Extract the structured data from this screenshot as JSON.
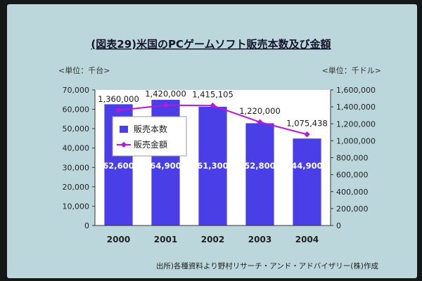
{
  "chart_data": {
    "type": "bar+line",
    "title": "(図表29)米国のPCゲームソフト販売本数及び金額",
    "left_unit": "<単位：千台>",
    "right_unit": "<単位：千ドル>",
    "categories": [
      "2000",
      "2001",
      "2002",
      "2003",
      "2004"
    ],
    "series": [
      {
        "name": "販売本数",
        "type": "bar",
        "axis": "left",
        "values": [
          62600,
          64900,
          61300,
          52800,
          44900
        ],
        "labels": [
          "62,600",
          "64,900",
          "61,300",
          "52,800",
          "44,900"
        ],
        "color": "#4a3fe6"
      },
      {
        "name": "販売金額",
        "type": "line",
        "axis": "right",
        "values": [
          1360000,
          1420000,
          1415105,
          1220000,
          1075438
        ],
        "labels": [
          "1,360,000",
          "1,420,000",
          "1,415,105",
          "1,220,000",
          "1,075,438"
        ],
        "color": "#b61ad6"
      }
    ],
    "left_axis": {
      "range": [
        0,
        70000
      ],
      "ticks": [
        "0",
        "10,000",
        "20,000",
        "30,000",
        "40,000",
        "50,000",
        "60,000",
        "70,000"
      ]
    },
    "right_axis": {
      "range": [
        0,
        1600000
      ],
      "ticks": [
        "0",
        "200,000",
        "400,000",
        "600,000",
        "800,000",
        "1,000,000",
        "1,200,000",
        "1,400,000",
        "1,600,000"
      ]
    },
    "legend": {
      "placement": "inside-left"
    },
    "source": "出所)各種資料より野村リサーチ・アンド・アドバイザリー(株)作成",
    "colors": {
      "background": "#bcd7db",
      "plot_area": "#ffffff",
      "bar": "#4a3fe6",
      "line": "#b61ad6",
      "axis": "#333333"
    }
  }
}
